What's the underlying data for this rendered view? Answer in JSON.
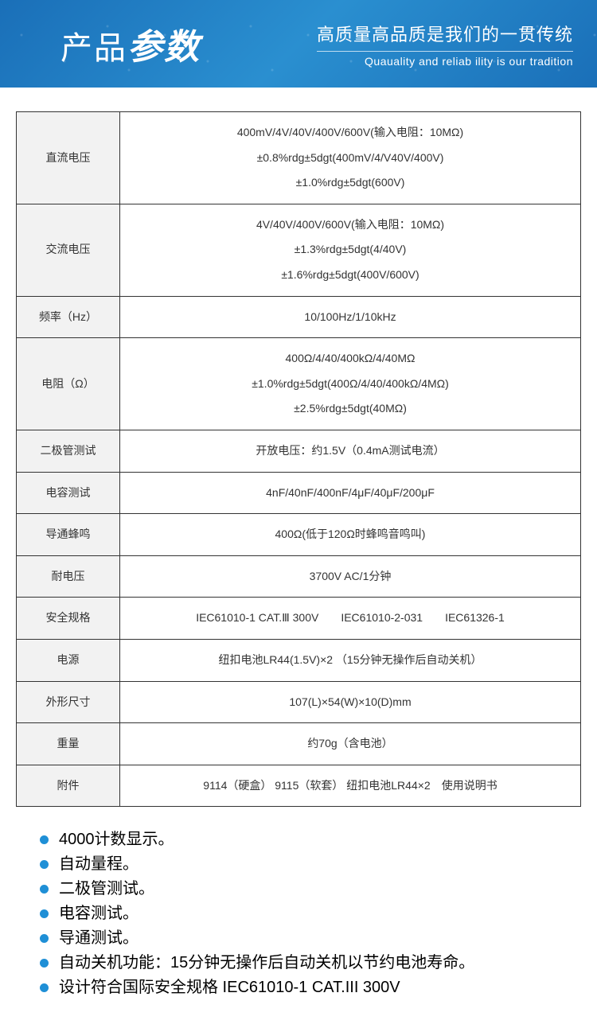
{
  "header": {
    "title_part1": "产品",
    "title_part2": "参数",
    "subtitle_cn": "高质量高品质是我们的一贯传统",
    "subtitle_en": "Quauality and reliab ility is our tradition",
    "bg_gradient": [
      "#1a6fb8",
      "#2a8fd0",
      "#1a6fb8"
    ],
    "title_color": "#ffffff",
    "title_fontsize_1": 40,
    "title_fontsize_2": 44
  },
  "table": {
    "border_color": "#333333",
    "label_bg": "#f2f2f2",
    "value_bg": "#ffffff",
    "text_color": "#333333",
    "fontsize": 14,
    "rows": [
      {
        "label": "直流电压",
        "lines": [
          "400mV/4V/40V/400V/600V(输入电阻：10MΩ)",
          "±0.8%rdg±5dgt(400mV/4/V40V/400V)",
          "±1.0%rdg±5dgt(600V)"
        ]
      },
      {
        "label": "交流电压",
        "lines": [
          "4V/40V/400V/600V(输入电阻：10MΩ)",
          "±1.3%rdg±5dgt(4/40V)",
          "±1.6%rdg±5dgt(400V/600V)"
        ]
      },
      {
        "label": "频率（Hz）",
        "lines": [
          "10/100Hz/1/10kHz"
        ]
      },
      {
        "label": "电阻（Ω）",
        "lines": [
          "400Ω/4/40/400kΩ/4/40MΩ",
          "±1.0%rdg±5dgt(400Ω/4/40/400kΩ/4MΩ)",
          "±2.5%rdg±5dgt(40MΩ)"
        ]
      },
      {
        "label": "二极管测试",
        "lines": [
          "开放电压：约1.5V（0.4mA测试电流）"
        ]
      },
      {
        "label": "电容测试",
        "lines": [
          "4nF/40nF/400nF/4μF/40μF/200μF"
        ]
      },
      {
        "label": "导通蜂鸣",
        "lines": [
          "400Ω(低于120Ω时蜂鸣音鸣叫)"
        ]
      },
      {
        "label": "耐电压",
        "lines": [
          "3700V AC/1分钟"
        ]
      },
      {
        "label": "安全规格",
        "lines": [
          "IEC61010-1 CAT.Ⅲ 300V　　IEC61010-2-031　　IEC61326-1"
        ]
      },
      {
        "label": "电源",
        "lines": [
          "纽扣电池LR44(1.5V)×2 （15分钟无操作后自动关机）"
        ]
      },
      {
        "label": "外形尺寸",
        "lines": [
          "107(L)×54(W)×10(D)mm"
        ]
      },
      {
        "label": "重量",
        "lines": [
          "约70g（含电池）"
        ]
      },
      {
        "label": "附件",
        "lines": [
          "9114（硬盒） 9115（软套） 纽扣电池LR44×2　使用说明书"
        ]
      }
    ]
  },
  "features": {
    "bullet_color": "#1f8fd6",
    "text_color": "#000000",
    "fontsize": 20,
    "items": [
      "4000计数显示。",
      "自动量程。",
      "二极管测试。",
      "电容测试。",
      "导通测试。",
      "自动关机功能：15分钟无操作后自动关机以节约电池寿命。",
      "设计符合国际安全规格 IEC61010-1 CAT.III 300V"
    ]
  }
}
